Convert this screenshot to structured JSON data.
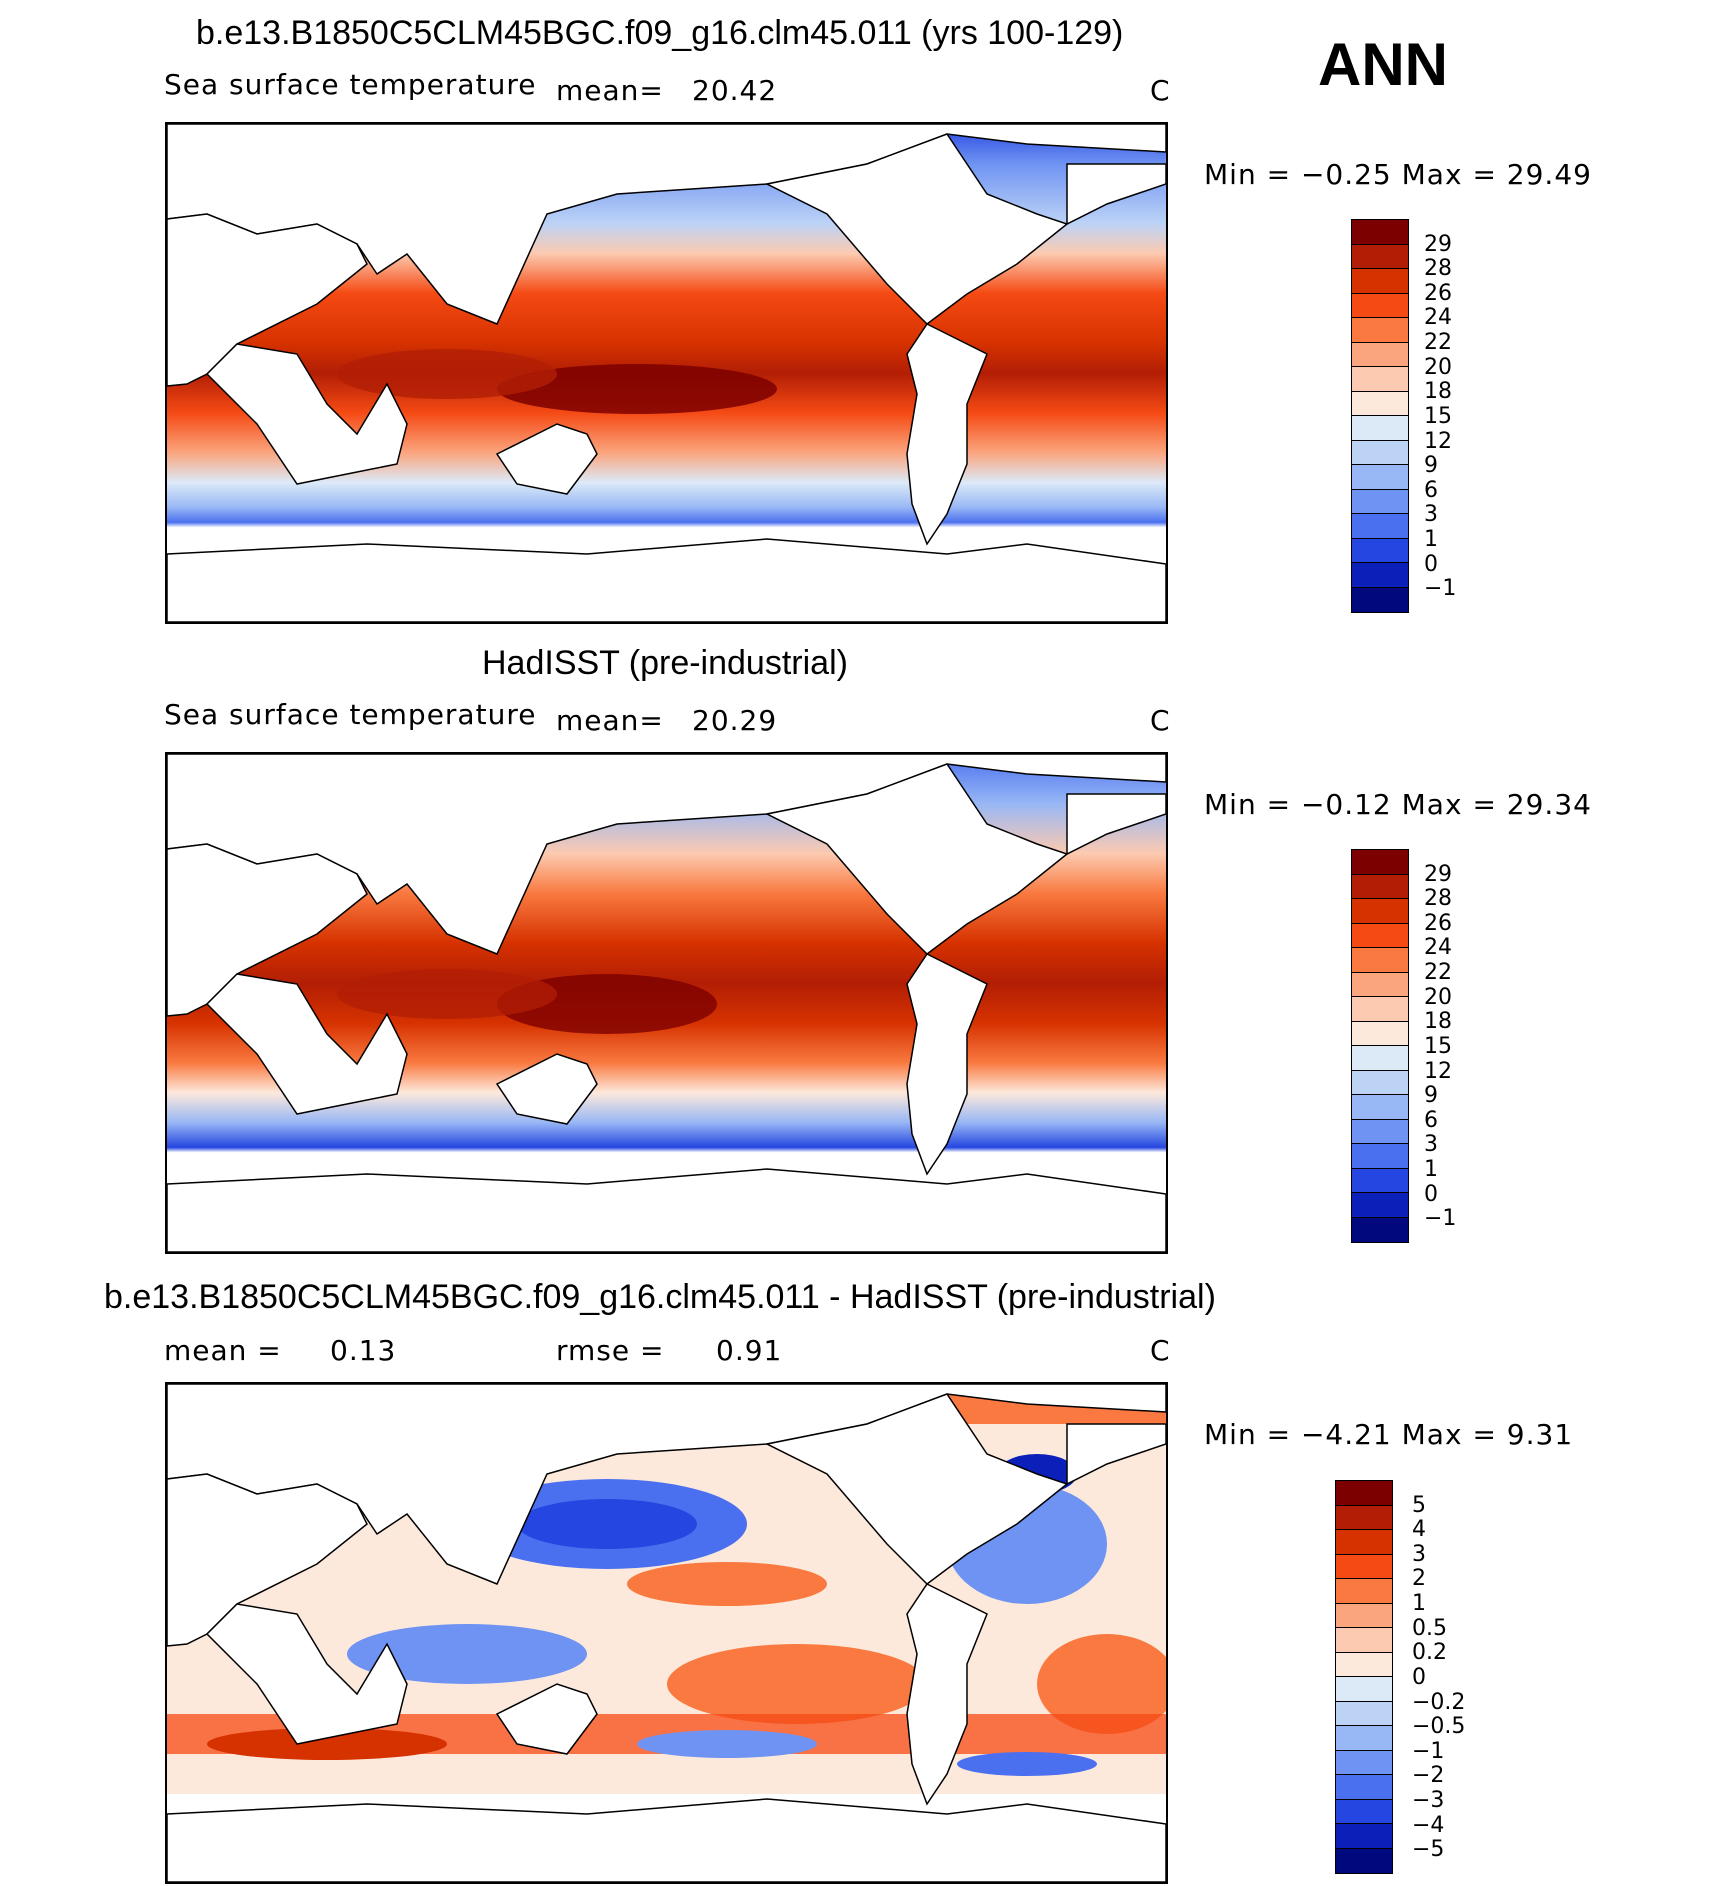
{
  "season": "ANN",
  "panels": [
    {
      "title": "b.e13.B1850C5CLM45BGC.f09_g16.clm45.011 (yrs 100-129)",
      "variable": "Sea surface temperature",
      "mean_label": "mean=",
      "mean_value": "20.42",
      "units": "C",
      "minmax": "Min =   −0.25 Max =   29.49",
      "colorbar_labels": [
        "29",
        "28",
        "26",
        "24",
        "22",
        "20",
        "18",
        "15",
        "12",
        "9",
        "6",
        "3",
        "1",
        "0",
        "−1"
      ]
    },
    {
      "title": "HadISST (pre-industrial)",
      "variable": "Sea surface temperature",
      "mean_label": "mean=",
      "mean_value": "20.29",
      "units": "C",
      "minmax": "Min =   −0.12 Max =   29.34",
      "colorbar_labels": [
        "29",
        "28",
        "26",
        "24",
        "22",
        "20",
        "18",
        "15",
        "12",
        "9",
        "6",
        "3",
        "1",
        "0",
        "−1"
      ]
    },
    {
      "title": "b.e13.B1850C5CLM45BGC.f09_g16.clm45.011 - HadISST (pre-industrial)",
      "mean_label": "mean =",
      "mean_value": "0.13",
      "rmse_label": "rmse =",
      "rmse_value": "0.91",
      "units": "C",
      "minmax": "Min =   −4.21 Max =    9.31",
      "colorbar_labels": [
        "5",
        "4",
        "3",
        "2",
        "1",
        "0.5",
        "0.2",
        "0",
        "−0.2",
        "−0.5",
        "−1",
        "−2",
        "−3",
        "−4",
        "−5"
      ]
    }
  ],
  "colors": {
    "sst_scale": [
      "#7d0000",
      "#b21e05",
      "#d63200",
      "#f54a14",
      "#f97940",
      "#fba57e",
      "#fccab0",
      "#fde9dc",
      "#dceaf8",
      "#bcd3f6",
      "#98b7f5",
      "#6f93f2",
      "#4b70ef",
      "#2546e0",
      "#0a20b8",
      "#00087e"
    ],
    "diff_scale": [
      "#7d0000",
      "#b21e05",
      "#d63200",
      "#f54a14",
      "#f97940",
      "#fba57e",
      "#fccab0",
      "#fde9dc",
      "#dceaf8",
      "#bcd3f6",
      "#98b7f5",
      "#6f93f2",
      "#4b70ef",
      "#2546e0",
      "#0a20b8",
      "#00087e"
    ]
  },
  "chart_data": [
    {
      "type": "heatmap",
      "title": "b.e13.B1850C5CLM45BGC.f09_g16.clm45.011 (yrs 100-129)",
      "field": "Sea surface temperature",
      "units": "C",
      "mean": 20.42,
      "min": -0.25,
      "max": 29.49,
      "contour_levels": [
        -1,
        0,
        1,
        3,
        6,
        9,
        12,
        15,
        18,
        20,
        22,
        24,
        26,
        28,
        29
      ]
    },
    {
      "type": "heatmap",
      "title": "HadISST (pre-industrial)",
      "field": "Sea surface temperature",
      "units": "C",
      "mean": 20.29,
      "min": -0.12,
      "max": 29.34,
      "contour_levels": [
        -1,
        0,
        1,
        3,
        6,
        9,
        12,
        15,
        18,
        20,
        22,
        24,
        26,
        28,
        29
      ]
    },
    {
      "type": "heatmap",
      "title": "b.e13.B1850C5CLM45BGC.f09_g16.clm45.011 - HadISST (pre-industrial)",
      "units": "C",
      "mean": 0.13,
      "rmse": 0.91,
      "min": -4.21,
      "max": 9.31,
      "contour_levels": [
        -5,
        -4,
        -3,
        -2,
        -1,
        -0.5,
        -0.2,
        0,
        0.2,
        0.5,
        1,
        2,
        3,
        4,
        5
      ]
    }
  ]
}
